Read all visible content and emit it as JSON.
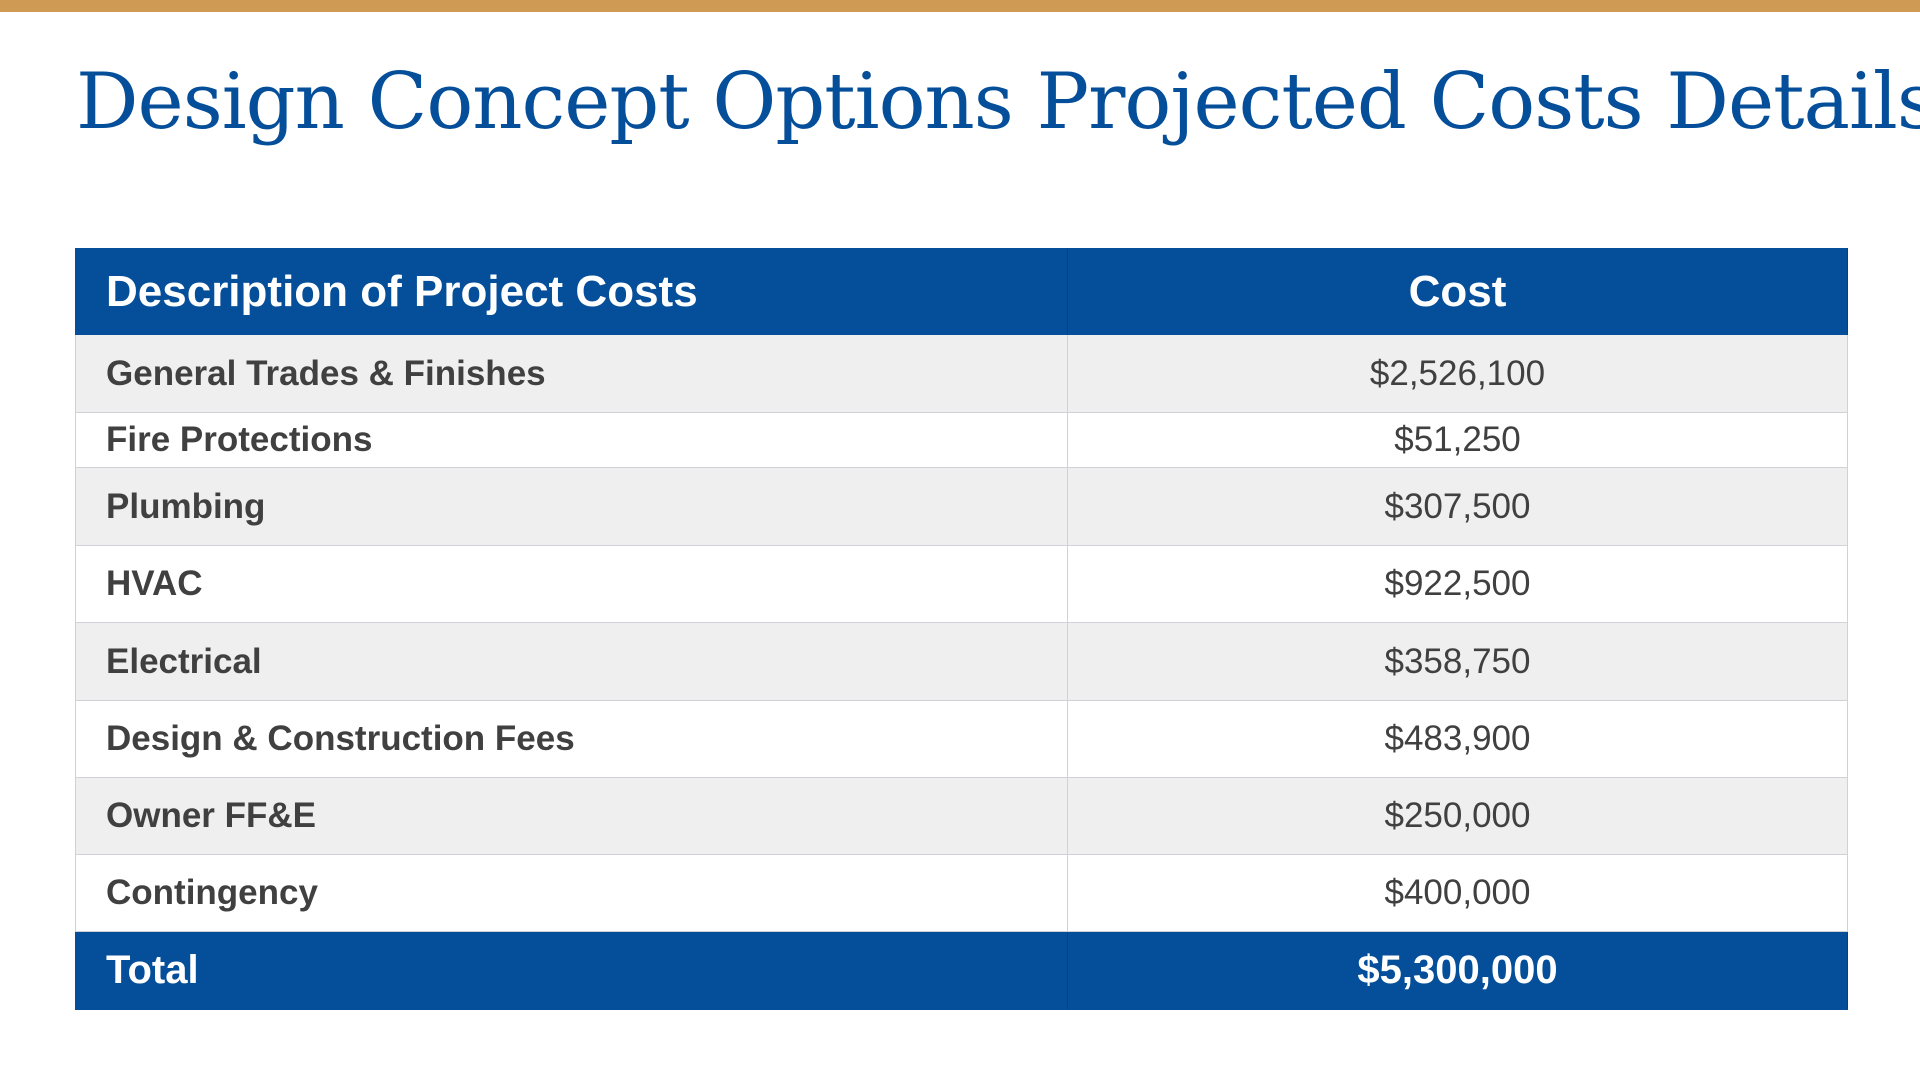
{
  "slide": {
    "title": "Design Concept Options Projected Costs Details",
    "colors": {
      "top_bar": "#CF9A53",
      "title": "#044E9A",
      "header_bg": "#044E9A",
      "shaded_row": "#EFEFEF",
      "body_text": "#404040"
    }
  },
  "table": {
    "headers": {
      "description": "Description of Project Costs",
      "cost": "Cost"
    },
    "rows": [
      {
        "description": "General Trades & Finishes",
        "cost": "$2,526,100"
      },
      {
        "description": "Fire Protections",
        "cost": "$51,250"
      },
      {
        "description": "Plumbing",
        "cost": "$307,500"
      },
      {
        "description": "HVAC",
        "cost": "$922,500"
      },
      {
        "description": "Electrical",
        "cost": "$358,750"
      },
      {
        "description": "Design & Construction Fees",
        "cost": "$483,900"
      },
      {
        "description": "Owner FF&E",
        "cost": "$250,000"
      },
      {
        "description": "Contingency",
        "cost": "$400,000"
      }
    ],
    "total": {
      "label": "Total",
      "value": "$5,300,000"
    }
  }
}
